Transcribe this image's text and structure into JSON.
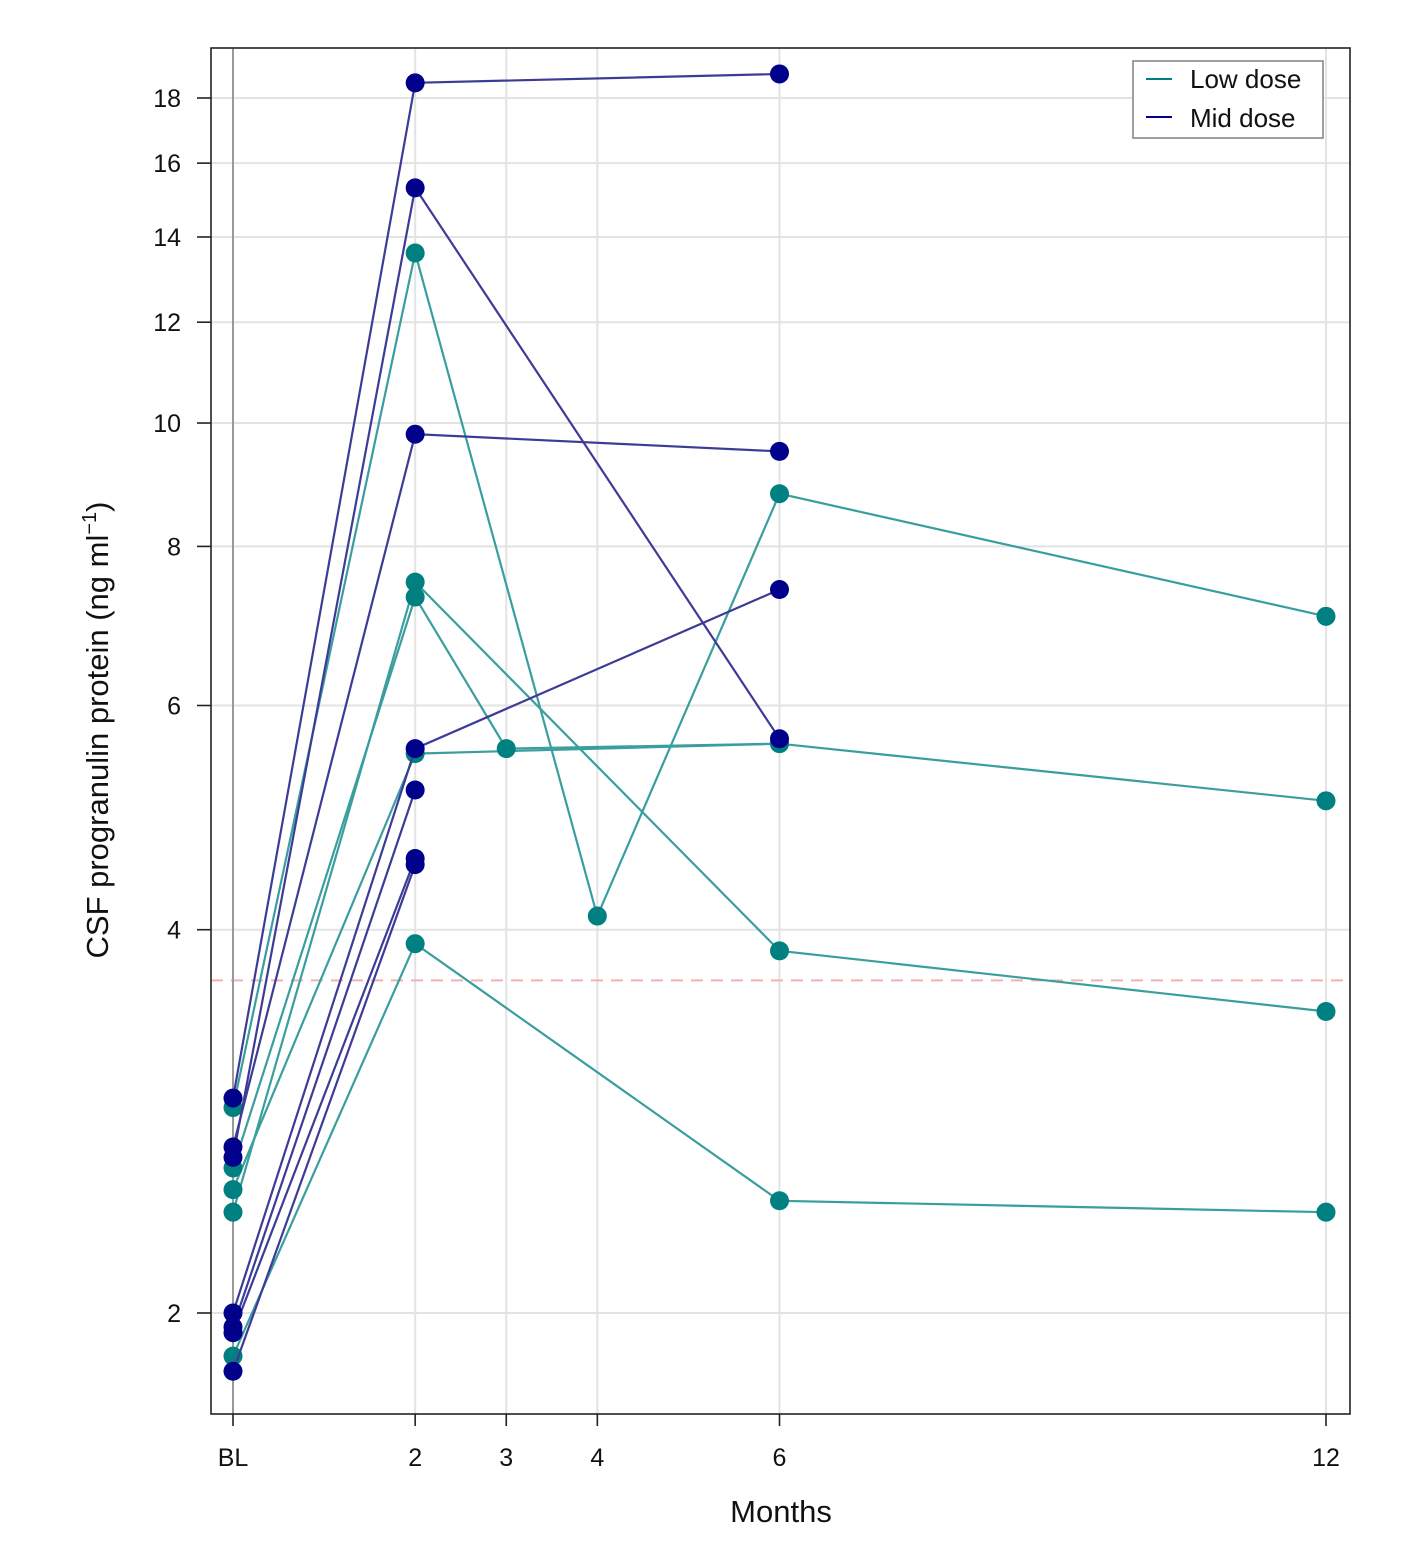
{
  "chart_data": {
    "type": "line",
    "title": "",
    "xlabel": "Months",
    "ylabel": "CSF progranulin protein (ng ml",
    "ylabel_superscript": "−1",
    "ylabel_close": ")",
    "yscale": "log",
    "xlim": [
      0,
      12
    ],
    "ylim": [
      1.65,
      20.6
    ],
    "x_ticks": [
      {
        "value": 0,
        "label": "BL"
      },
      {
        "value": 2,
        "label": "2"
      },
      {
        "value": 3,
        "label": "3"
      },
      {
        "value": 4,
        "label": "4"
      },
      {
        "value": 6,
        "label": "6"
      },
      {
        "value": 12,
        "label": "12"
      }
    ],
    "y_ticks": [
      2,
      4,
      6,
      8,
      10,
      12,
      14,
      16,
      18
    ],
    "threshold": 3.65,
    "grid": true,
    "legend_position": "top-right",
    "colors": {
      "low": "#008080",
      "mid": "#00008b",
      "threshold": "#f4b0b0",
      "grid": "#e3e3e3",
      "baseline": "#999999"
    },
    "series": [
      {
        "name": "Low dose",
        "key": "low",
        "subjects": [
          [
            [
              0,
              1.85
            ],
            [
              2,
              3.9
            ],
            [
              6,
              2.45
            ],
            [
              12,
              2.4
            ]
          ],
          [
            [
              0,
              2.6
            ],
            [
              2,
              7.3
            ],
            [
              3,
              5.55
            ],
            [
              6,
              5.6
            ],
            [
              12,
              5.05
            ]
          ],
          [
            [
              0,
              2.4
            ],
            [
              2,
              7.5
            ],
            [
              6,
              3.85
            ],
            [
              12,
              3.45
            ]
          ],
          [
            [
              0,
              2.5
            ],
            [
              2,
              5.5
            ],
            [
              6,
              5.6
            ]
          ],
          [
            [
              0,
              2.9
            ],
            [
              2,
              13.6
            ],
            [
              4,
              4.1
            ],
            [
              6,
              8.8
            ],
            [
              12,
              7.05
            ]
          ]
        ]
      },
      {
        "name": "Mid dose",
        "key": "mid",
        "subjects": [
          [
            [
              0,
              2.95
            ],
            [
              2,
              18.5
            ],
            [
              6,
              18.8
            ]
          ],
          [
            [
              0,
              2.65
            ],
            [
              2,
              15.3
            ],
            [
              6,
              5.65
            ]
          ],
          [
            [
              0,
              2.7
            ],
            [
              2,
              9.8
            ],
            [
              6,
              9.5
            ]
          ],
          [
            [
              0,
              2.0
            ],
            [
              2,
              5.55
            ],
            [
              6,
              7.4
            ]
          ],
          [
            [
              0,
              1.95
            ],
            [
              2,
              5.15
            ]
          ],
          [
            [
              0,
              1.93
            ],
            [
              2,
              4.55
            ]
          ],
          [
            [
              0,
              1.8
            ],
            [
              2,
              4.5
            ]
          ]
        ]
      }
    ]
  }
}
